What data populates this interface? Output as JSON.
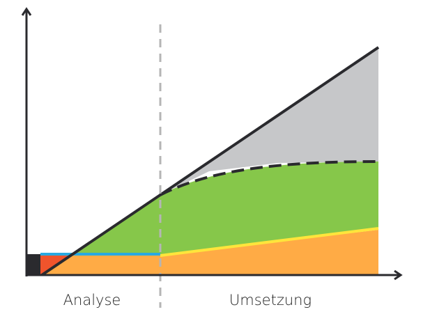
{
  "labels": {
    "left": "Analyse",
    "right": "Umsetzung"
  }
}
